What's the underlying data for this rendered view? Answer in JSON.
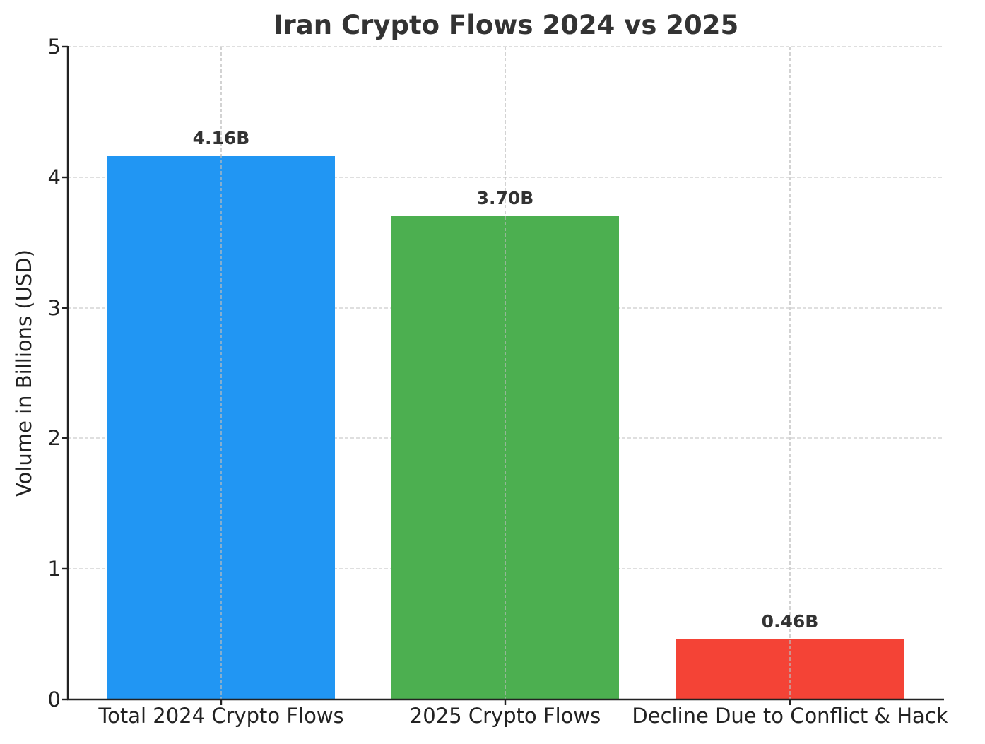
{
  "chart_data": {
    "type": "bar",
    "title": "Iran Crypto Flows 2024 vs 2025",
    "xlabel": "",
    "ylabel": "Volume in Billions (USD)",
    "ylim": [
      0,
      5
    ],
    "yticks": [
      "0",
      "1",
      "2",
      "3",
      "4",
      "5"
    ],
    "grid": true,
    "categories": [
      "Total 2024 Crypto Flows",
      "2025 Crypto Flows",
      "Decline Due to Conflict & Hack"
    ],
    "values": [
      4.16,
      3.7,
      0.46
    ],
    "data_labels": [
      "4.16B",
      "3.70B",
      "0.46B"
    ],
    "colors": [
      "#2196f3",
      "#4caf50",
      "#f44336"
    ]
  }
}
